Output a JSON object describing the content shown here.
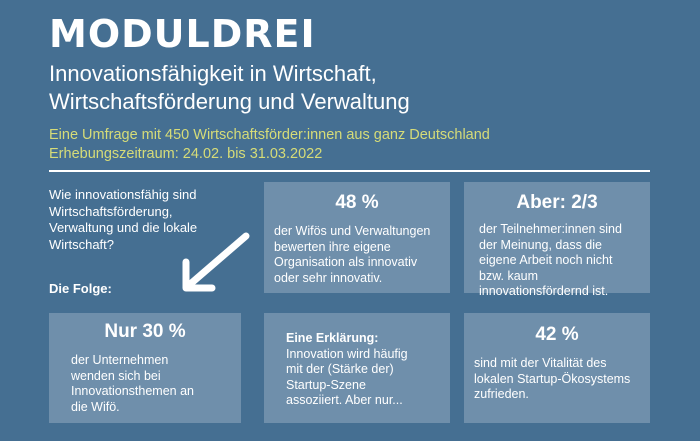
{
  "header": {
    "logo": "MODULDREI",
    "title_lines": [
      "Innovationsfähigkeit in Wirtschaft,",
      "Wirtschaftsförderung und Verwaltung"
    ],
    "subtitle_lines": [
      "Eine Umfrage mit 450 Wirtschaftsförder:innen aus ganz Deutschland",
      "Erhebungszeitraum: 24.02. bis 31.03.2022"
    ]
  },
  "question_lines": [
    "Wie innovationsfähig sind",
    "Wirtschaftsförderung,",
    "Verwaltung und die lokale",
    "Wirtschaft?"
  ],
  "folge_label": "Die Folge:",
  "cards": [
    {
      "value": "48 %",
      "text_lines": [
        "der Wifös und Verwaltungen",
        "bewerten ihre eigene",
        "Organisation als innovativ",
        "oder sehr innovativ."
      ]
    },
    {
      "value": "Aber: 2/3",
      "text_lines": [
        "der Teilnehmer:innen sind",
        "der Meinung, dass die",
        "eigene Arbeit noch nicht",
        "bzw. kaum",
        "innovationsfördernd ist."
      ]
    },
    {
      "value": "Nur 30 %",
      "text_lines": [
        "der Unternehmen",
        "wenden sich bei",
        "Innovationsthemen an",
        "die Wifö."
      ]
    },
    {
      "value": "",
      "text_lines": [
        "Eine Erklärung:",
        "Innovation wird häufig",
        "mit der (Stärke der)",
        "Startup-Szene",
        "assoziiert. Aber nur..."
      ]
    },
    {
      "value": "42 %",
      "text_lines": [
        "sind mit der Vitalität des",
        "lokalen Startup-Ökosystems",
        "zufrieden."
      ]
    }
  ],
  "colors": {
    "background": "#456f92",
    "card": "#6f8fab",
    "subtitle": "#d6dc78",
    "text": "#ffffff"
  },
  "icons": {
    "arrow": "arrow-down-left-icon"
  }
}
